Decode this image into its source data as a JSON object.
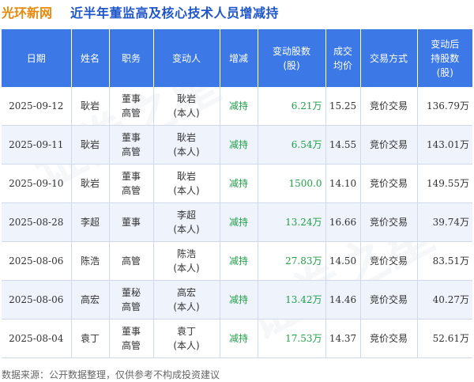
{
  "header": {
    "brand": "光环新网",
    "title": "近半年董监高及核心技术人员增减持"
  },
  "table": {
    "columns": [
      "日期",
      "姓名",
      "职务",
      "变动人",
      "增减",
      "变动股数\n(股)",
      "成交\n均价",
      "交易方式",
      "变动后\n持股数\n(股)"
    ],
    "rows": [
      {
        "date": "2025-09-12",
        "name": "耿岩",
        "role": "董事\n高管",
        "person": "耿岩\n(本人)",
        "action": "减持",
        "shares": "6.21万",
        "price": "15.25",
        "method": "竞价交易",
        "holding": "136.79万"
      },
      {
        "date": "2025-09-11",
        "name": "耿岩",
        "role": "董事\n高管",
        "person": "耿岩\n(本人)",
        "action": "减持",
        "shares": "6.54万",
        "price": "14.55",
        "method": "竞价交易",
        "holding": "143.01万"
      },
      {
        "date": "2025-09-10",
        "name": "耿岩",
        "role": "董事\n高管",
        "person": "耿岩\n(本人)",
        "action": "减持",
        "shares": "1500.0",
        "price": "14.10",
        "method": "竞价交易",
        "holding": "149.55万"
      },
      {
        "date": "2025-08-28",
        "name": "李超",
        "role": "董事",
        "person": "李超\n(本人)",
        "action": "减持",
        "shares": "13.24万",
        "price": "16.66",
        "method": "竞价交易",
        "holding": "39.74万"
      },
      {
        "date": "2025-08-06",
        "name": "陈浩",
        "role": "高管",
        "person": "陈浩\n(本人)",
        "action": "减持",
        "shares": "27.83万",
        "price": "14.50",
        "method": "竞价交易",
        "holding": "83.51万"
      },
      {
        "date": "2025-08-06",
        "name": "高宏",
        "role": "董秘\n高管",
        "person": "高宏\n(本人)",
        "action": "减持",
        "shares": "13.42万",
        "price": "14.46",
        "method": "竞价交易",
        "holding": "40.27万"
      },
      {
        "date": "2025-08-04",
        "name": "袁丁",
        "role": "董事\n高管",
        "person": "袁丁\n(本人)",
        "action": "减持",
        "shares": "17.53万",
        "price": "14.37",
        "method": "竞价交易",
        "holding": "52.61万"
      }
    ]
  },
  "footer": {
    "source": "数据来源：公开数据整理，仅供参考不构成投资建议"
  },
  "watermark": {
    "text": "证券之星"
  },
  "colors": {
    "brand": "#e8890c",
    "title": "#1f56c8",
    "header_bg": "#3c78e6",
    "alt_row": "#eef3fc",
    "reduce": "#22a048"
  }
}
